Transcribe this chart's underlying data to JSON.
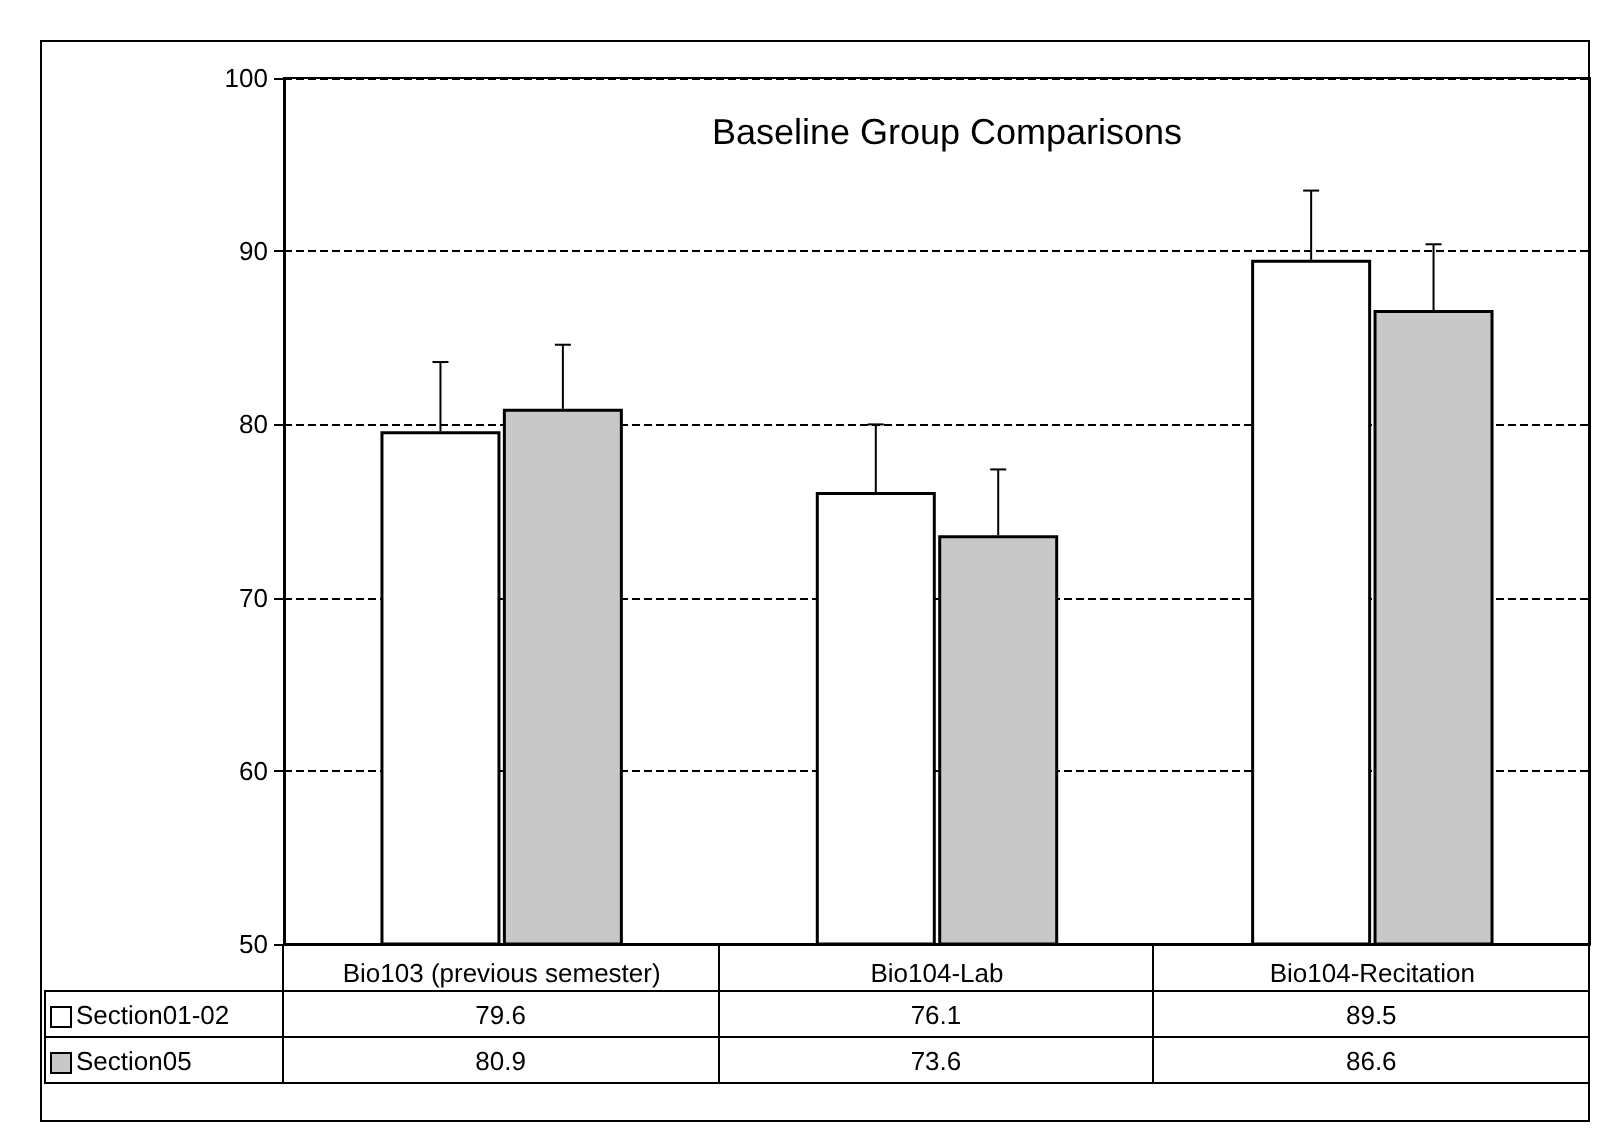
{
  "chart_data": {
    "type": "bar",
    "title": "Baseline Group Comparisons",
    "categories": [
      "Bio103 (previous semester)",
      "Bio104-Lab",
      "Bio104-Recitation"
    ],
    "series": [
      {
        "name": "Section01-02",
        "color": "#ffffff",
        "values": [
          79.6,
          76.1,
          89.5
        ],
        "errors": [
          [
            79.6,
            83.6
          ],
          [
            76.1,
            80.0
          ],
          [
            89.5,
            93.5
          ]
        ]
      },
      {
        "name": "Section05",
        "color": "#c8c8c8",
        "values": [
          80.9,
          73.6,
          86.6
        ],
        "errors": [
          [
            80.9,
            84.6
          ],
          [
            73.6,
            77.4
          ],
          [
            86.6,
            90.4
          ]
        ]
      }
    ],
    "ylim": [
      50,
      100
    ],
    "yticks": [
      50,
      60,
      70,
      80,
      90,
      100
    ],
    "grid": "y",
    "legend": "bottom",
    "data_labels": true
  }
}
